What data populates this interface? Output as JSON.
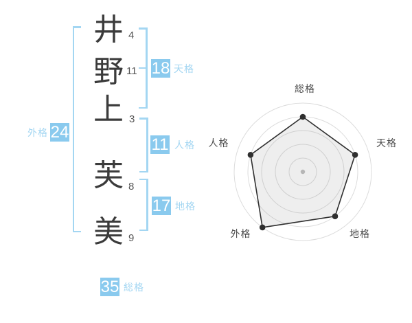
{
  "name": {
    "characters": [
      {
        "char": "井",
        "strokes": "4"
      },
      {
        "char": "野",
        "strokes": "11"
      },
      {
        "char": "上",
        "strokes": "3"
      },
      {
        "char": "芙",
        "strokes": "8"
      },
      {
        "char": "美",
        "strokes": "9"
      }
    ]
  },
  "grades": {
    "tenkaku": {
      "label": "天格",
      "value": "18"
    },
    "jinkaku": {
      "label": "人格",
      "value": "11"
    },
    "chikaku": {
      "label": "地格",
      "value": "17"
    },
    "gaikaku": {
      "label": "外格",
      "value": "24"
    },
    "soukaku": {
      "label": "総格",
      "value": "35"
    }
  },
  "colors": {
    "badge_blue": "#8acaee",
    "label_blue": "#a3d6f2",
    "bracket_blue": "#a3d6f2",
    "text_dark": "#3b3b3b",
    "stroke_number_gray": "#555555",
    "ring_gray": "#dcdcdc",
    "series_dark": "#2f2f2f"
  },
  "chart_data": {
    "type": "radar",
    "axes": [
      "総格",
      "天格",
      "地格",
      "外格",
      "人格"
    ],
    "values": [
      80,
      80,
      80,
      100,
      80
    ],
    "scale_max": 100,
    "ring_values": [
      20,
      40,
      60,
      80,
      100
    ],
    "start_angle_deg": 90,
    "direction": "clockwise",
    "grid": "circular-rings",
    "legend": false,
    "center_marker": true
  }
}
